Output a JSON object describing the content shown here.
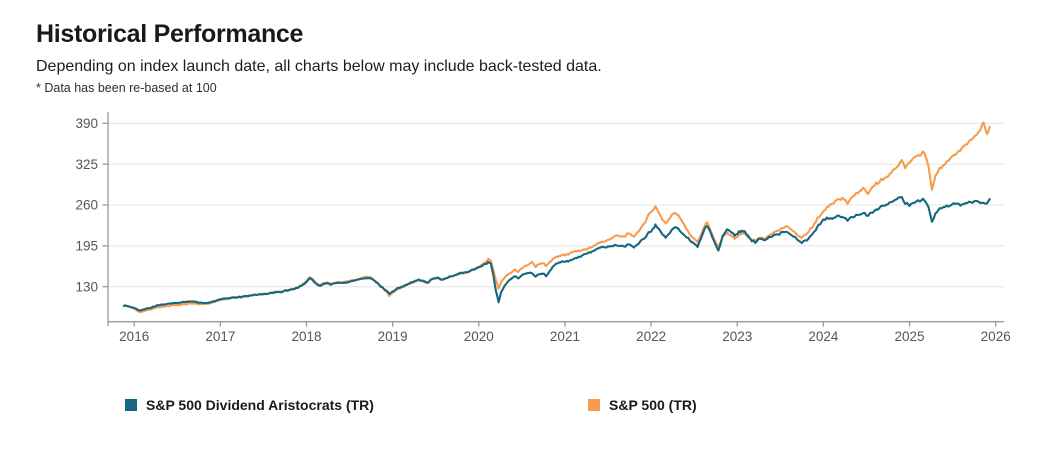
{
  "header": {
    "title": "Historical Performance",
    "subtitle": "Depending on index launch date, all charts below may include back-tested data.",
    "note": "* Data has been re-based at 100"
  },
  "colors": {
    "aristocrats_teal": "#15687F",
    "sp500_orange": "#F79C4F",
    "gridline": "#E4E4E4",
    "axis": "#9B9B9B",
    "tick_label": "#54565A",
    "text": "#1A1A1A",
    "background": "#FFFFFF"
  },
  "chart_data": {
    "type": "line",
    "title": "",
    "xlabel": "",
    "ylabel": "",
    "x_ticks": [
      2016,
      2017,
      2018,
      2019,
      2020,
      2021,
      2022,
      2023,
      2024,
      2025,
      2026
    ],
    "y_ticks": [
      130,
      195,
      260,
      325,
      390
    ],
    "xlim": [
      2015.75,
      2026.15
    ],
    "ylim": [
      74,
      400
    ],
    "grid": "horizontal",
    "legend_position": "bottom",
    "rebased_at": 100,
    "jitter": 1.1,
    "x": [
      2015.88,
      2015.92,
      2015.96,
      2016.0,
      2016.04,
      2016.08,
      2016.12,
      2016.16,
      2016.2,
      2016.25,
      2016.3,
      2016.35,
      2016.4,
      2016.45,
      2016.5,
      2016.55,
      2016.6,
      2016.65,
      2016.7,
      2016.76,
      2016.82,
      2016.86,
      2016.92,
      2017.0,
      2017.08,
      2017.16,
      2017.24,
      2017.32,
      2017.4,
      2017.48,
      2017.56,
      2017.64,
      2017.72,
      2017.8,
      2017.88,
      2017.94,
      2018.0,
      2018.04,
      2018.08,
      2018.12,
      2018.16,
      2018.2,
      2018.24,
      2018.28,
      2018.34,
      2018.4,
      2018.46,
      2018.52,
      2018.58,
      2018.64,
      2018.7,
      2018.74,
      2018.78,
      2018.83,
      2018.88,
      2018.93,
      2018.96,
      2019.0,
      2019.06,
      2019.12,
      2019.18,
      2019.24,
      2019.3,
      2019.34,
      2019.4,
      2019.46,
      2019.52,
      2019.58,
      2019.64,
      2019.7,
      2019.76,
      2019.82,
      2019.88,
      2019.94,
      2020.0,
      2020.06,
      2020.11,
      2020.14,
      2020.17,
      2020.2,
      2020.23,
      2020.26,
      2020.3,
      2020.34,
      2020.38,
      2020.42,
      2020.46,
      2020.5,
      2020.54,
      2020.58,
      2020.62,
      2020.66,
      2020.7,
      2020.74,
      2020.78,
      2020.82,
      2020.86,
      2020.9,
      2020.95,
      2021.0,
      2021.08,
      2021.16,
      2021.24,
      2021.32,
      2021.4,
      2021.48,
      2021.56,
      2021.62,
      2021.68,
      2021.74,
      2021.8,
      2021.86,
      2021.92,
      2021.97,
      2022.02,
      2022.05,
      2022.09,
      2022.13,
      2022.17,
      2022.22,
      2022.28,
      2022.33,
      2022.39,
      2022.45,
      2022.5,
      2022.54,
      2022.58,
      2022.62,
      2022.65,
      2022.69,
      2022.73,
      2022.78,
      2022.83,
      2022.88,
      2022.92,
      2022.97,
      2023.02,
      2023.07,
      2023.12,
      2023.17,
      2023.21,
      2023.27,
      2023.33,
      2023.39,
      2023.45,
      2023.51,
      2023.57,
      2023.63,
      2023.69,
      2023.75,
      2023.81,
      2023.87,
      2023.93,
      2023.98,
      2024.04,
      2024.1,
      2024.16,
      2024.22,
      2024.28,
      2024.34,
      2024.4,
      2024.46,
      2024.52,
      2024.57,
      2024.63,
      2024.69,
      2024.75,
      2024.81,
      2024.87,
      2024.91,
      2024.95,
      2025.0,
      2025.06,
      2025.12,
      2025.17,
      2025.22,
      2025.26,
      2025.3,
      2025.35,
      2025.41,
      2025.47,
      2025.53,
      2025.59,
      2025.65,
      2025.71,
      2025.77,
      2025.82,
      2025.86,
      2025.9,
      2025.93
    ],
    "series": [
      {
        "name": "S&P 500 Dividend Aristocrats (TR)",
        "color": "#15687F",
        "values": [
          100,
          99.2,
          97.8,
          96,
          93.8,
          92.6,
          94,
          95.8,
          97.2,
          99.6,
          101.4,
          102,
          102.6,
          103.6,
          104.6,
          105.2,
          106.2,
          106.8,
          106,
          104.6,
          104.2,
          103.8,
          106.4,
          109.8,
          111.6,
          112.8,
          114,
          115.2,
          116.6,
          117.8,
          119.4,
          120.8,
          122.4,
          124.6,
          127.6,
          131,
          137.5,
          143.8,
          140,
          133.5,
          131.5,
          134.5,
          136,
          134,
          135,
          136,
          137,
          138.2,
          139.8,
          141.8,
          144,
          143,
          140,
          134.5,
          129,
          123.5,
          119,
          122.5,
          127.5,
          131,
          134.5,
          138,
          141,
          139.5,
          136.5,
          142,
          144,
          141,
          145,
          147.5,
          150,
          151.5,
          154,
          157,
          161,
          165,
          169,
          167,
          148,
          122,
          106,
          122,
          132,
          138,
          143,
          147,
          143,
          147.5,
          151,
          153,
          151,
          146.5,
          150,
          151.5,
          147.5,
          154,
          163,
          167,
          169.5,
          170,
          172.5,
          177,
          182,
          186,
          191,
          193.5,
          195.5,
          196,
          194,
          197,
          193.5,
          200,
          207,
          216,
          222,
          227.5,
          221,
          215,
          209,
          217,
          225,
          220,
          211,
          204,
          199,
          194.5,
          206,
          221,
          228,
          217,
          203,
          188.5,
          209,
          222,
          219,
          210.5,
          217,
          220,
          212,
          204,
          200.5,
          207,
          204.5,
          209,
          212.5,
          215.5,
          218,
          213,
          206.5,
          199.5,
          205,
          213,
          225,
          233,
          239.5,
          237.5,
          243,
          241.5,
          235,
          241,
          245,
          247,
          242.5,
          250,
          253.5,
          259,
          263,
          266.5,
          271,
          272.5,
          263.5,
          259,
          264,
          267,
          268.5,
          259,
          233.5,
          246,
          253.5,
          257.5,
          260,
          262.5,
          259.5,
          262.5,
          265.5,
          267,
          264,
          261.5,
          264.5,
          270
        ]
      },
      {
        "name": "S&P 500 (TR)",
        "color": "#F79C4F",
        "values": [
          100,
          99,
          97.2,
          94.8,
          91.8,
          89.6,
          91.2,
          93.2,
          94.8,
          96.8,
          98,
          98.8,
          99.4,
          100.2,
          101,
          101.8,
          102.8,
          103.4,
          103,
          102.2,
          102.6,
          102.4,
          105.2,
          108.8,
          110.8,
          112.2,
          113.6,
          114.8,
          116.4,
          118,
          119.8,
          121.4,
          123,
          125.2,
          128.4,
          132,
          139,
          145.5,
          141.5,
          134.5,
          132.5,
          135.5,
          137,
          135,
          136,
          137.2,
          138.2,
          139.6,
          141.2,
          143.4,
          146,
          144.8,
          141,
          135,
          129.5,
          122,
          115.5,
          120.5,
          126,
          129.8,
          133.3,
          136.8,
          140,
          138.4,
          135.4,
          141,
          143.4,
          140.4,
          144.4,
          146.9,
          149.4,
          151.2,
          153.8,
          157.2,
          162,
          167,
          174,
          171,
          157,
          140,
          127.5,
          138,
          145,
          149.5,
          153.5,
          157,
          153.5,
          159,
          163,
          166,
          169.5,
          162.5,
          166,
          168,
          163,
          169,
          174,
          177,
          179.5,
          181,
          184,
          187,
          190,
          193.5,
          198.5,
          204,
          209,
          212,
          209,
          215,
          210,
          220,
          230,
          244,
          252.5,
          257,
          248,
          239,
          232.5,
          241,
          248.5,
          241,
          227,
          213,
          206.5,
          201,
          212,
          226,
          232.5,
          220,
          206,
          194.5,
          207.5,
          216.5,
          212.5,
          205.5,
          212.5,
          216,
          210,
          204.5,
          202.5,
          209,
          207,
          212.5,
          217,
          222,
          227,
          221.5,
          213.5,
          208,
          215.5,
          224,
          237,
          246,
          256,
          261.5,
          268.5,
          271,
          262,
          272,
          280,
          287,
          277.5,
          290,
          296,
          301.5,
          307,
          315,
          323,
          330,
          320.5,
          328,
          335,
          340,
          344.5,
          324,
          284,
          306,
          318,
          326,
          334,
          341,
          348,
          355,
          363,
          372,
          380,
          390.5,
          374,
          384
        ]
      }
    ]
  }
}
